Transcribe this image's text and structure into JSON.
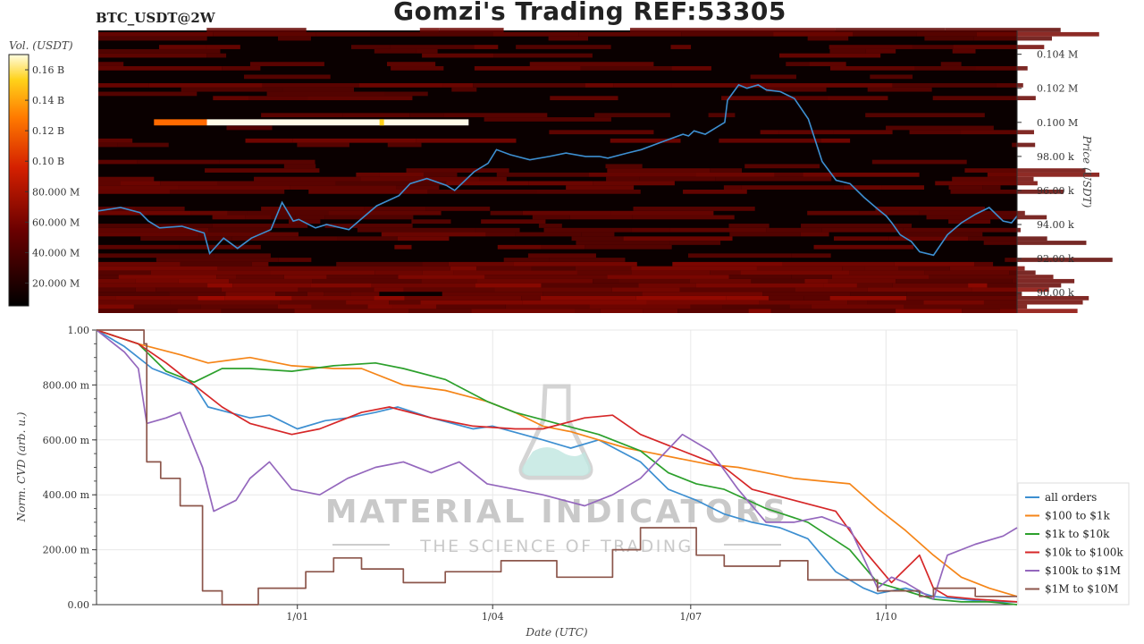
{
  "header": {
    "title": "Gomzi's Trading REF:53305",
    "pair": "BTC_USDT@2W"
  },
  "watermark": {
    "brand": "MATERIAL INDICATORS",
    "tagline": "THE SCIENCE OF TRADING"
  },
  "colors": {
    "price_line": "#3d8fd1",
    "heatmap_bg": "#0a0000",
    "watermark": "#b8b8b8",
    "flask": "#bfe6e0"
  },
  "chart_data": [
    {
      "type": "heatmap",
      "title": "BTC_USDT@2W",
      "colorbar_label": "Vol. (USDT)",
      "colorbar_ticks": [
        "20.000 M",
        "40.000 M",
        "60.000 M",
        "80.000 M",
        "0.10 B",
        "0.12 B",
        "0.14 B",
        "0.16 B"
      ],
      "colorbar_values": [
        20000000,
        40000000,
        60000000,
        80000000,
        100000000,
        120000000,
        140000000,
        160000000
      ],
      "colorbar_range": [
        5000000,
        170000000
      ],
      "ylabel": "Price (USDT)",
      "ylim": [
        88800,
        105400
      ],
      "y_ticks": [
        "90.00 k",
        "92.00 k",
        "94.00 k",
        "96.00 k",
        "98.00 k",
        "0.100 M",
        "0.102 M",
        "0.104 M"
      ],
      "y_tick_values": [
        90000,
        92000,
        94000,
        96000,
        98000,
        100000,
        102000,
        104000
      ],
      "xlim_days": [
        0,
        330
      ],
      "highlight_band": {
        "price": 100000,
        "start_day": 20,
        "end_day": 133,
        "volume_start": 120000000,
        "volume_peak": 170000000
      },
      "price_series": {
        "name": "price",
        "x_days": [
          0,
          8,
          15,
          18,
          22,
          30,
          38,
          40,
          45,
          50,
          55,
          62,
          66,
          70,
          72,
          78,
          82,
          90,
          95,
          100,
          108,
          112,
          118,
          125,
          128,
          135,
          140,
          143,
          148,
          155,
          162,
          168,
          175,
          180,
          183,
          190,
          195,
          200,
          205,
          210,
          212,
          214,
          218,
          225,
          226,
          230,
          233,
          237,
          240,
          245,
          250,
          255,
          260,
          265,
          270,
          275,
          280,
          283,
          285,
          288,
          292,
          295,
          300,
          305,
          310,
          315,
          320,
          325,
          328,
          330
        ],
        "y_values": [
          94800,
          95000,
          94700,
          94200,
          93800,
          93900,
          93500,
          92300,
          93200,
          92600,
          93200,
          93700,
          95300,
          94200,
          94300,
          93800,
          94000,
          93700,
          94400,
          95100,
          95700,
          96400,
          96700,
          96300,
          96000,
          97100,
          97600,
          98400,
          98100,
          97800,
          98000,
          98200,
          98000,
          98000,
          97900,
          98200,
          98400,
          98700,
          99000,
          99300,
          99200,
          99500,
          99300,
          100000,
          101300,
          102200,
          102000,
          102200,
          101900,
          101800,
          101400,
          100200,
          97700,
          96600,
          96400,
          95600,
          94900,
          94500,
          94100,
          93400,
          93000,
          92400,
          92200,
          93400,
          94100,
          94600,
          95000,
          94200,
          94100,
          94500
        ]
      }
    },
    {
      "type": "line",
      "xlabel": "Date (UTC)",
      "ylabel": "Norm. CVD (arb. u.)",
      "ylim": [
        0,
        1
      ],
      "xlim_days": [
        0,
        330
      ],
      "x_ticks": [
        "1/01",
        "1/04",
        "1/07",
        "1/10"
      ],
      "x_tick_days": [
        72,
        142,
        213,
        283
      ],
      "y_ticks": [
        "0.00",
        "200.00 m",
        "400.00 m",
        "600.00 m",
        "800.00 m",
        "1.00"
      ],
      "y_tick_values": [
        0,
        0.2,
        0.4,
        0.6,
        0.8,
        1.0
      ],
      "grid": true,
      "legend": "bottom-right",
      "series": [
        {
          "name": "all orders",
          "color": "#3d8fd1",
          "x": [
            0,
            10,
            20,
            25,
            35,
            40,
            55,
            62,
            72,
            82,
            90,
            100,
            108,
            120,
            135,
            142,
            160,
            170,
            180,
            195,
            205,
            215,
            225,
            235,
            245,
            255,
            265,
            275,
            280,
            285,
            290,
            300,
            310,
            320,
            330
          ],
          "y": [
            1.0,
            0.94,
            0.86,
            0.84,
            0.8,
            0.72,
            0.68,
            0.69,
            0.64,
            0.67,
            0.68,
            0.7,
            0.72,
            0.68,
            0.64,
            0.65,
            0.6,
            0.57,
            0.6,
            0.52,
            0.42,
            0.38,
            0.33,
            0.3,
            0.28,
            0.24,
            0.12,
            0.06,
            0.04,
            0.05,
            0.06,
            0.03,
            0.02,
            0.01,
            0.01
          ]
        },
        {
          "name": "$100 to $1k",
          "color": "#f58518",
          "x": [
            0,
            15,
            30,
            40,
            55,
            70,
            85,
            95,
            110,
            125,
            140,
            150,
            160,
            170,
            180,
            190,
            200,
            210,
            220,
            230,
            240,
            250,
            260,
            270,
            280,
            290,
            300,
            310,
            320,
            330
          ],
          "y": [
            1.0,
            0.95,
            0.91,
            0.88,
            0.9,
            0.87,
            0.86,
            0.86,
            0.8,
            0.78,
            0.74,
            0.7,
            0.65,
            0.63,
            0.6,
            0.57,
            0.55,
            0.53,
            0.51,
            0.5,
            0.48,
            0.46,
            0.45,
            0.44,
            0.35,
            0.27,
            0.18,
            0.1,
            0.06,
            0.03
          ]
        },
        {
          "name": "$1k to $10k",
          "color": "#2ca02c",
          "x": [
            0,
            15,
            25,
            35,
            45,
            55,
            70,
            85,
            100,
            110,
            125,
            140,
            150,
            165,
            180,
            195,
            205,
            215,
            225,
            240,
            255,
            270,
            280,
            290,
            300,
            310,
            320,
            330
          ],
          "y": [
            1.0,
            0.95,
            0.85,
            0.81,
            0.86,
            0.86,
            0.85,
            0.87,
            0.88,
            0.86,
            0.82,
            0.74,
            0.7,
            0.66,
            0.62,
            0.56,
            0.48,
            0.44,
            0.42,
            0.35,
            0.3,
            0.2,
            0.08,
            0.05,
            0.02,
            0.01,
            0.01,
            0.0
          ]
        },
        {
          "name": "$10k to $100k",
          "color": "#d62728",
          "x": [
            0,
            15,
            25,
            35,
            45,
            55,
            70,
            80,
            95,
            105,
            120,
            135,
            150,
            160,
            175,
            185,
            195,
            205,
            215,
            225,
            235,
            250,
            265,
            275,
            285,
            295,
            300,
            305,
            315,
            330
          ],
          "y": [
            1.0,
            0.95,
            0.88,
            0.8,
            0.72,
            0.66,
            0.62,
            0.64,
            0.7,
            0.72,
            0.68,
            0.65,
            0.64,
            0.64,
            0.68,
            0.69,
            0.62,
            0.58,
            0.54,
            0.5,
            0.42,
            0.38,
            0.34,
            0.2,
            0.08,
            0.18,
            0.06,
            0.03,
            0.02,
            0.01
          ]
        },
        {
          "name": "$100k to $1M",
          "color": "#9467bd",
          "x": [
            0,
            10,
            15,
            18,
            25,
            30,
            38,
            42,
            50,
            55,
            62,
            70,
            80,
            90,
            100,
            110,
            120,
            130,
            140,
            150,
            160,
            175,
            185,
            195,
            210,
            220,
            230,
            240,
            250,
            260,
            270,
            280,
            285,
            290,
            300,
            305,
            315,
            325,
            330
          ],
          "y": [
            1.0,
            0.92,
            0.86,
            0.66,
            0.68,
            0.7,
            0.5,
            0.34,
            0.38,
            0.46,
            0.52,
            0.42,
            0.4,
            0.46,
            0.5,
            0.52,
            0.48,
            0.52,
            0.44,
            0.42,
            0.4,
            0.36,
            0.4,
            0.46,
            0.62,
            0.56,
            0.42,
            0.3,
            0.3,
            0.32,
            0.28,
            0.06,
            0.1,
            0.08,
            0.02,
            0.18,
            0.22,
            0.25,
            0.28
          ]
        },
        {
          "name": "$1M to $10M",
          "color": "#8c564b",
          "x": [
            0,
            17,
            17,
            18,
            18,
            23,
            23,
            30,
            30,
            38,
            38,
            45,
            45,
            58,
            58,
            75,
            75,
            85,
            85,
            95,
            95,
            110,
            110,
            125,
            125,
            145,
            145,
            165,
            165,
            185,
            185,
            195,
            195,
            215,
            215,
            225,
            225,
            245,
            245,
            255,
            255,
            280,
            280,
            295,
            295,
            300,
            300,
            315,
            315,
            330
          ],
          "y": [
            1.0,
            1.0,
            0.95,
            0.95,
            0.52,
            0.52,
            0.46,
            0.46,
            0.36,
            0.36,
            0.05,
            0.05,
            0.0,
            0.0,
            0.06,
            0.06,
            0.12,
            0.12,
            0.17,
            0.17,
            0.13,
            0.13,
            0.08,
            0.08,
            0.12,
            0.12,
            0.16,
            0.16,
            0.1,
            0.1,
            0.2,
            0.2,
            0.28,
            0.28,
            0.18,
            0.18,
            0.14,
            0.14,
            0.16,
            0.16,
            0.09,
            0.09,
            0.05,
            0.05,
            0.03,
            0.03,
            0.06,
            0.06,
            0.03,
            0.03
          ]
        }
      ]
    }
  ]
}
